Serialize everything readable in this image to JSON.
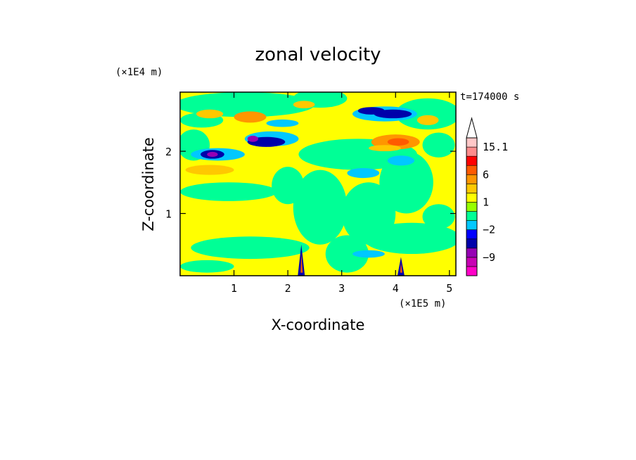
{
  "chart_data": {
    "type": "heatmap",
    "title": "zonal velocity",
    "xlabel": "X-coordinate",
    "ylabel": "Z-coordinate",
    "x_multiplier": "(×1E5 m)",
    "y_multiplier": "(×1E4 m)",
    "time_label": "t=174000 s",
    "xlim": [
      0,
      5.12
    ],
    "ylim": [
      0,
      2.95
    ],
    "x_ticks": [
      "1",
      "2",
      "3",
      "4",
      "5"
    ],
    "y_ticks": [
      "1",
      "2"
    ],
    "colorbar": {
      "labels": [
        "15.1",
        "6",
        "1",
        "−2",
        "−9"
      ],
      "levels": [
        -15,
        -12,
        -9,
        -6,
        -3,
        -2,
        -1,
        0,
        1,
        2,
        3,
        6,
        9,
        12,
        15.1
      ],
      "colors": [
        "#ff00c8",
        "#c800b4",
        "#9600b4",
        "#0000aa",
        "#0000ff",
        "#00c8ff",
        "#00ff96",
        "#96ff00",
        "#ffff00",
        "#ffc800",
        "#ff9600",
        "#ff5a00",
        "#ff0000",
        "#ff8c8c",
        "#ffc8c8"
      ],
      "extend": "max"
    },
    "field_features": [
      {
        "kind": "jet",
        "x": [
          0.1,
          1.9
        ],
        "z": 1.9,
        "sign": "positive"
      },
      {
        "kind": "jet",
        "x": [
          0.4,
          0.9
        ],
        "z": 1.95,
        "sign": "negative",
        "min": -6
      },
      {
        "kind": "jet",
        "x": [
          1.2,
          2.0
        ],
        "z": 2.15,
        "sign": "negative",
        "min": -6
      },
      {
        "kind": "jet",
        "x": [
          3.2,
          4.4
        ],
        "z": 2.6,
        "sign": "negative",
        "min": -6
      },
      {
        "kind": "jet",
        "x": [
          3.5,
          4.6
        ],
        "z": 2.15,
        "sign": "positive",
        "max": 6
      },
      {
        "kind": "jet",
        "x": [
          1.0,
          1.8
        ],
        "z": 2.5,
        "sign": "positive",
        "max": 6
      },
      {
        "kind": "plume",
        "x": 2.25,
        "z": [
          0,
          0.5
        ]
      },
      {
        "kind": "plume",
        "x": 4.1,
        "z": [
          0,
          0.3
        ]
      }
    ]
  }
}
